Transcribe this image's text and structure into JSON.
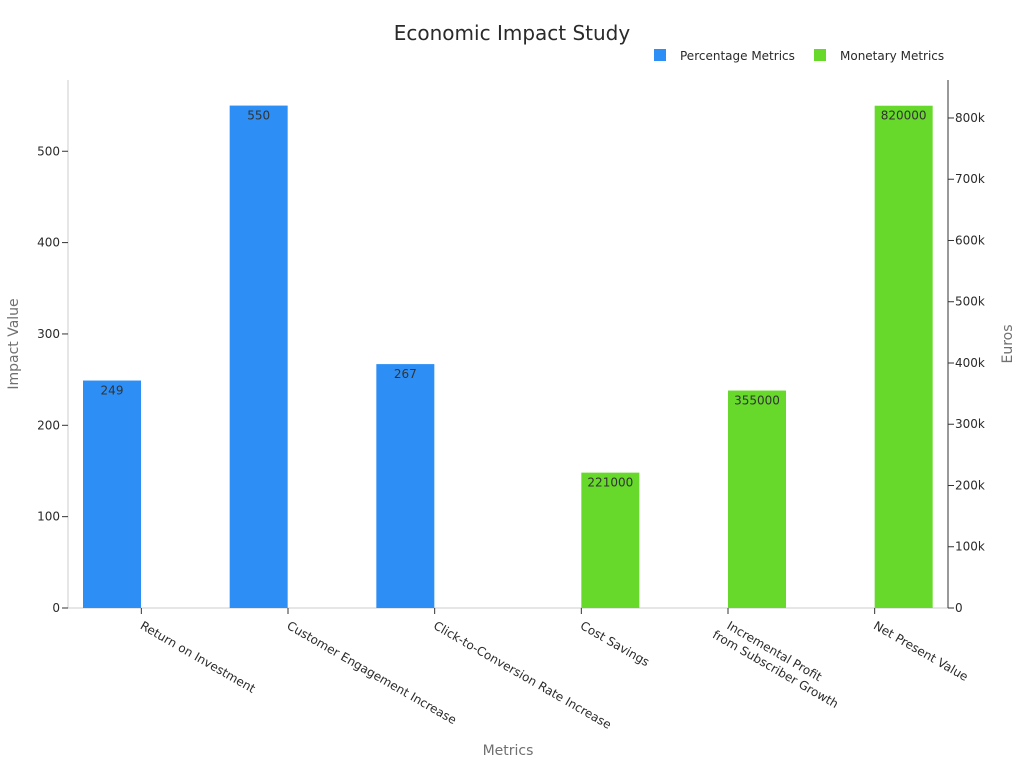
{
  "chart_data": {
    "type": "bar",
    "title": "Economic Impact Study",
    "xlabel": "Metrics",
    "ylabel": "Impact Value",
    "y2label": "Euros",
    "ylim": [
      0,
      578
    ],
    "y2lim": [
      0,
      862000
    ],
    "yticks": [
      0,
      100,
      200,
      300,
      400,
      500
    ],
    "y2ticks": [
      0,
      100000,
      200000,
      300000,
      400000,
      500000,
      600000,
      700000,
      800000
    ],
    "y2tick_labels": [
      "0",
      "100k",
      "200k",
      "300k",
      "400k",
      "500k",
      "600k",
      "700k",
      "800k"
    ],
    "categories": [
      [
        "Return on Investment"
      ],
      [
        "Customer Engagement Increase"
      ],
      [
        "Click-to-Conversion Rate Increase"
      ],
      [
        "Cost Savings"
      ],
      [
        "Incremental Profit",
        "from Subscriber Growth"
      ],
      [
        "Net Present Value"
      ]
    ],
    "legend_position": "top-right",
    "series": [
      {
        "name": "Percentage Metrics",
        "axis": "left",
        "color": "#2d8ff5",
        "values": [
          249,
          550,
          267,
          null,
          null,
          null
        ],
        "labels": [
          "249",
          "550",
          "267",
          "",
          "",
          ""
        ]
      },
      {
        "name": "Monetary Metrics",
        "axis": "right",
        "color": "#66d92a",
        "values": [
          null,
          null,
          null,
          221000,
          355000,
          820000
        ],
        "labels": [
          "",
          "",
          "",
          "221000",
          "355000",
          "820000"
        ]
      }
    ]
  }
}
